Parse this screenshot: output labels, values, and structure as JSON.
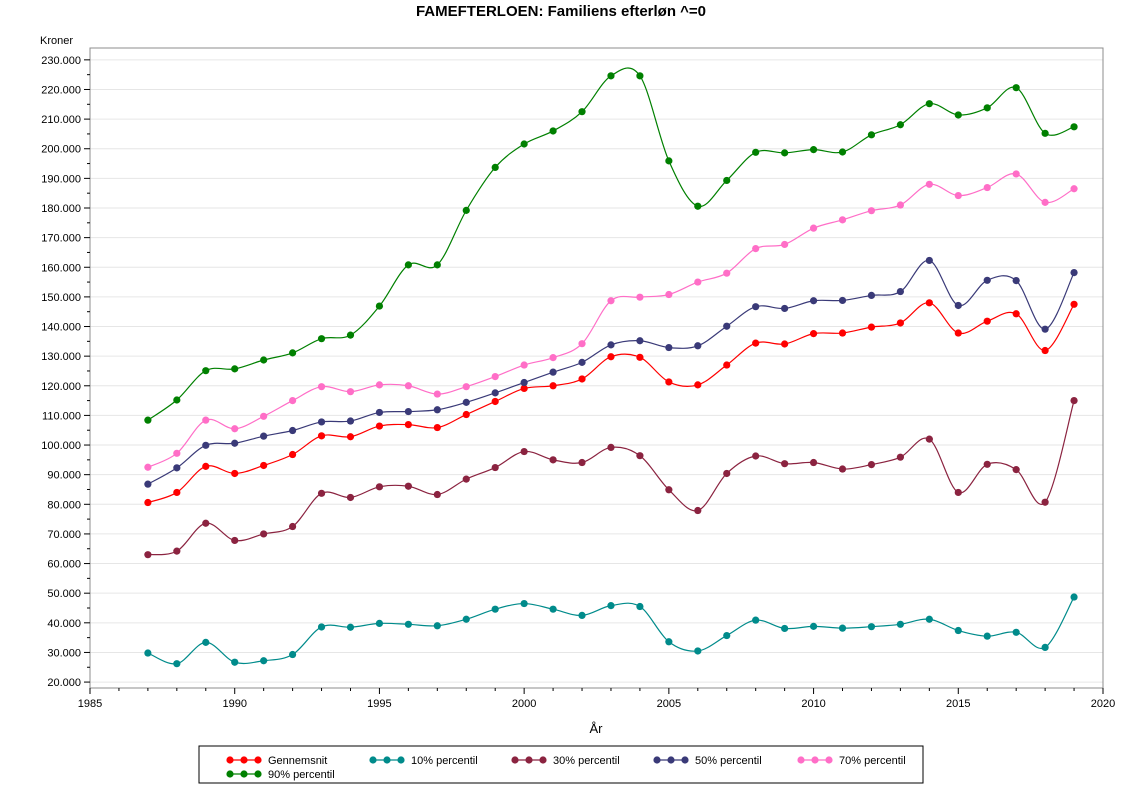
{
  "chart_data": {
    "type": "line",
    "title": "FAMEFTERLOEN: Familiens efterløn ^=0",
    "xlabel": "År",
    "ylabel": "Kroner",
    "xlim": [
      1985,
      2020
    ],
    "ylim": [
      18000,
      234000
    ],
    "x_ticks": [
      1985,
      1990,
      1995,
      2000,
      2005,
      2010,
      2015,
      2020
    ],
    "y_ticks": [
      20000,
      30000,
      40000,
      50000,
      60000,
      70000,
      80000,
      90000,
      100000,
      110000,
      120000,
      130000,
      140000,
      150000,
      160000,
      170000,
      180000,
      190000,
      200000,
      210000,
      220000,
      230000
    ],
    "y_tick_labels": [
      "20.000",
      "30.000",
      "40.000",
      "50.000",
      "60.000",
      "70.000",
      "80.000",
      "90.000",
      "100.000",
      "110.000",
      "120.000",
      "130.000",
      "140.000",
      "150.000",
      "160.000",
      "170.000",
      "180.000",
      "190.000",
      "200.000",
      "210.000",
      "220.000",
      "230.000"
    ],
    "grid": true,
    "legend_position": "bottom",
    "x": [
      1987,
      1988,
      1989,
      1990,
      1991,
      1992,
      1993,
      1994,
      1995,
      1996,
      1997,
      1998,
      1999,
      2000,
      2001,
      2002,
      2003,
      2004,
      2005,
      2006,
      2007,
      2008,
      2009,
      2010,
      2011,
      2012,
      2013,
      2014,
      2015,
      2016,
      2017,
      2018,
      2019
    ],
    "series": [
      {
        "name": "Gennemsnit",
        "color": "#ff0000",
        "values": [
          80600,
          84000,
          92800,
          90400,
          93100,
          96800,
          103100,
          102800,
          106400,
          106900,
          105900,
          110300,
          114700,
          119100,
          120000,
          122300,
          129800,
          129600,
          121300,
          120300,
          127000,
          134400,
          134100,
          137600,
          137800,
          139800,
          141200,
          148000,
          137800,
          141800,
          144300,
          131900,
          147500
        ]
      },
      {
        "name": "10% percentil",
        "color": "#008b8b",
        "values": [
          29800,
          26200,
          33400,
          26700,
          27200,
          29300,
          38600,
          38500,
          39800,
          39500,
          39000,
          41200,
          44600,
          46500,
          44600,
          42500,
          45800,
          45500,
          33600,
          30500,
          35700,
          40900,
          38100,
          38800,
          38200,
          38700,
          39500,
          41200,
          37400,
          35500,
          36800,
          31700,
          48700
        ]
      },
      {
        "name": "30% percentil",
        "color": "#8b2340",
        "values": [
          63000,
          64200,
          73600,
          67800,
          70000,
          72500,
          83700,
          82300,
          85900,
          86100,
          83300,
          88500,
          92400,
          97800,
          95000,
          94100,
          99200,
          96400,
          84900,
          77900,
          90400,
          96300,
          93700,
          94100,
          91900,
          93400,
          95900,
          102000,
          84000,
          93500,
          91700,
          80700,
          115000
        ]
      },
      {
        "name": "50% percentil",
        "color": "#3a3a78",
        "values": [
          86800,
          92300,
          99900,
          100600,
          103000,
          104900,
          107800,
          108100,
          111000,
          111300,
          111900,
          114400,
          117600,
          121100,
          124600,
          127900,
          133800,
          135200,
          132900,
          133500,
          140100,
          146700,
          146100,
          148700,
          148800,
          150500,
          151800,
          162300,
          147100,
          155600,
          155500,
          139100,
          158200
        ]
      },
      {
        "name": "70% percentil",
        "color": "#ff6ec7",
        "values": [
          92500,
          97200,
          108400,
          105500,
          109700,
          115000,
          119700,
          118000,
          120300,
          120000,
          117200,
          119700,
          123100,
          127000,
          129500,
          134200,
          148700,
          149900,
          150800,
          155000,
          158000,
          166300,
          167700,
          173200,
          176000,
          179100,
          181000,
          188000,
          184200,
          186900,
          191500,
          181900,
          186500
        ]
      },
      {
        "name": "90% percentil",
        "color": "#008000",
        "values": [
          108400,
          115200,
          125100,
          125700,
          128700,
          131100,
          135900,
          137100,
          146900,
          160800,
          160800,
          179200,
          193700,
          201600,
          206000,
          212500,
          224600,
          224600,
          195900,
          180600,
          189300,
          198800,
          198600,
          199700,
          198900,
          204700,
          208100,
          215200,
          211400,
          213800,
          220600,
          205200,
          207400
        ]
      }
    ]
  }
}
